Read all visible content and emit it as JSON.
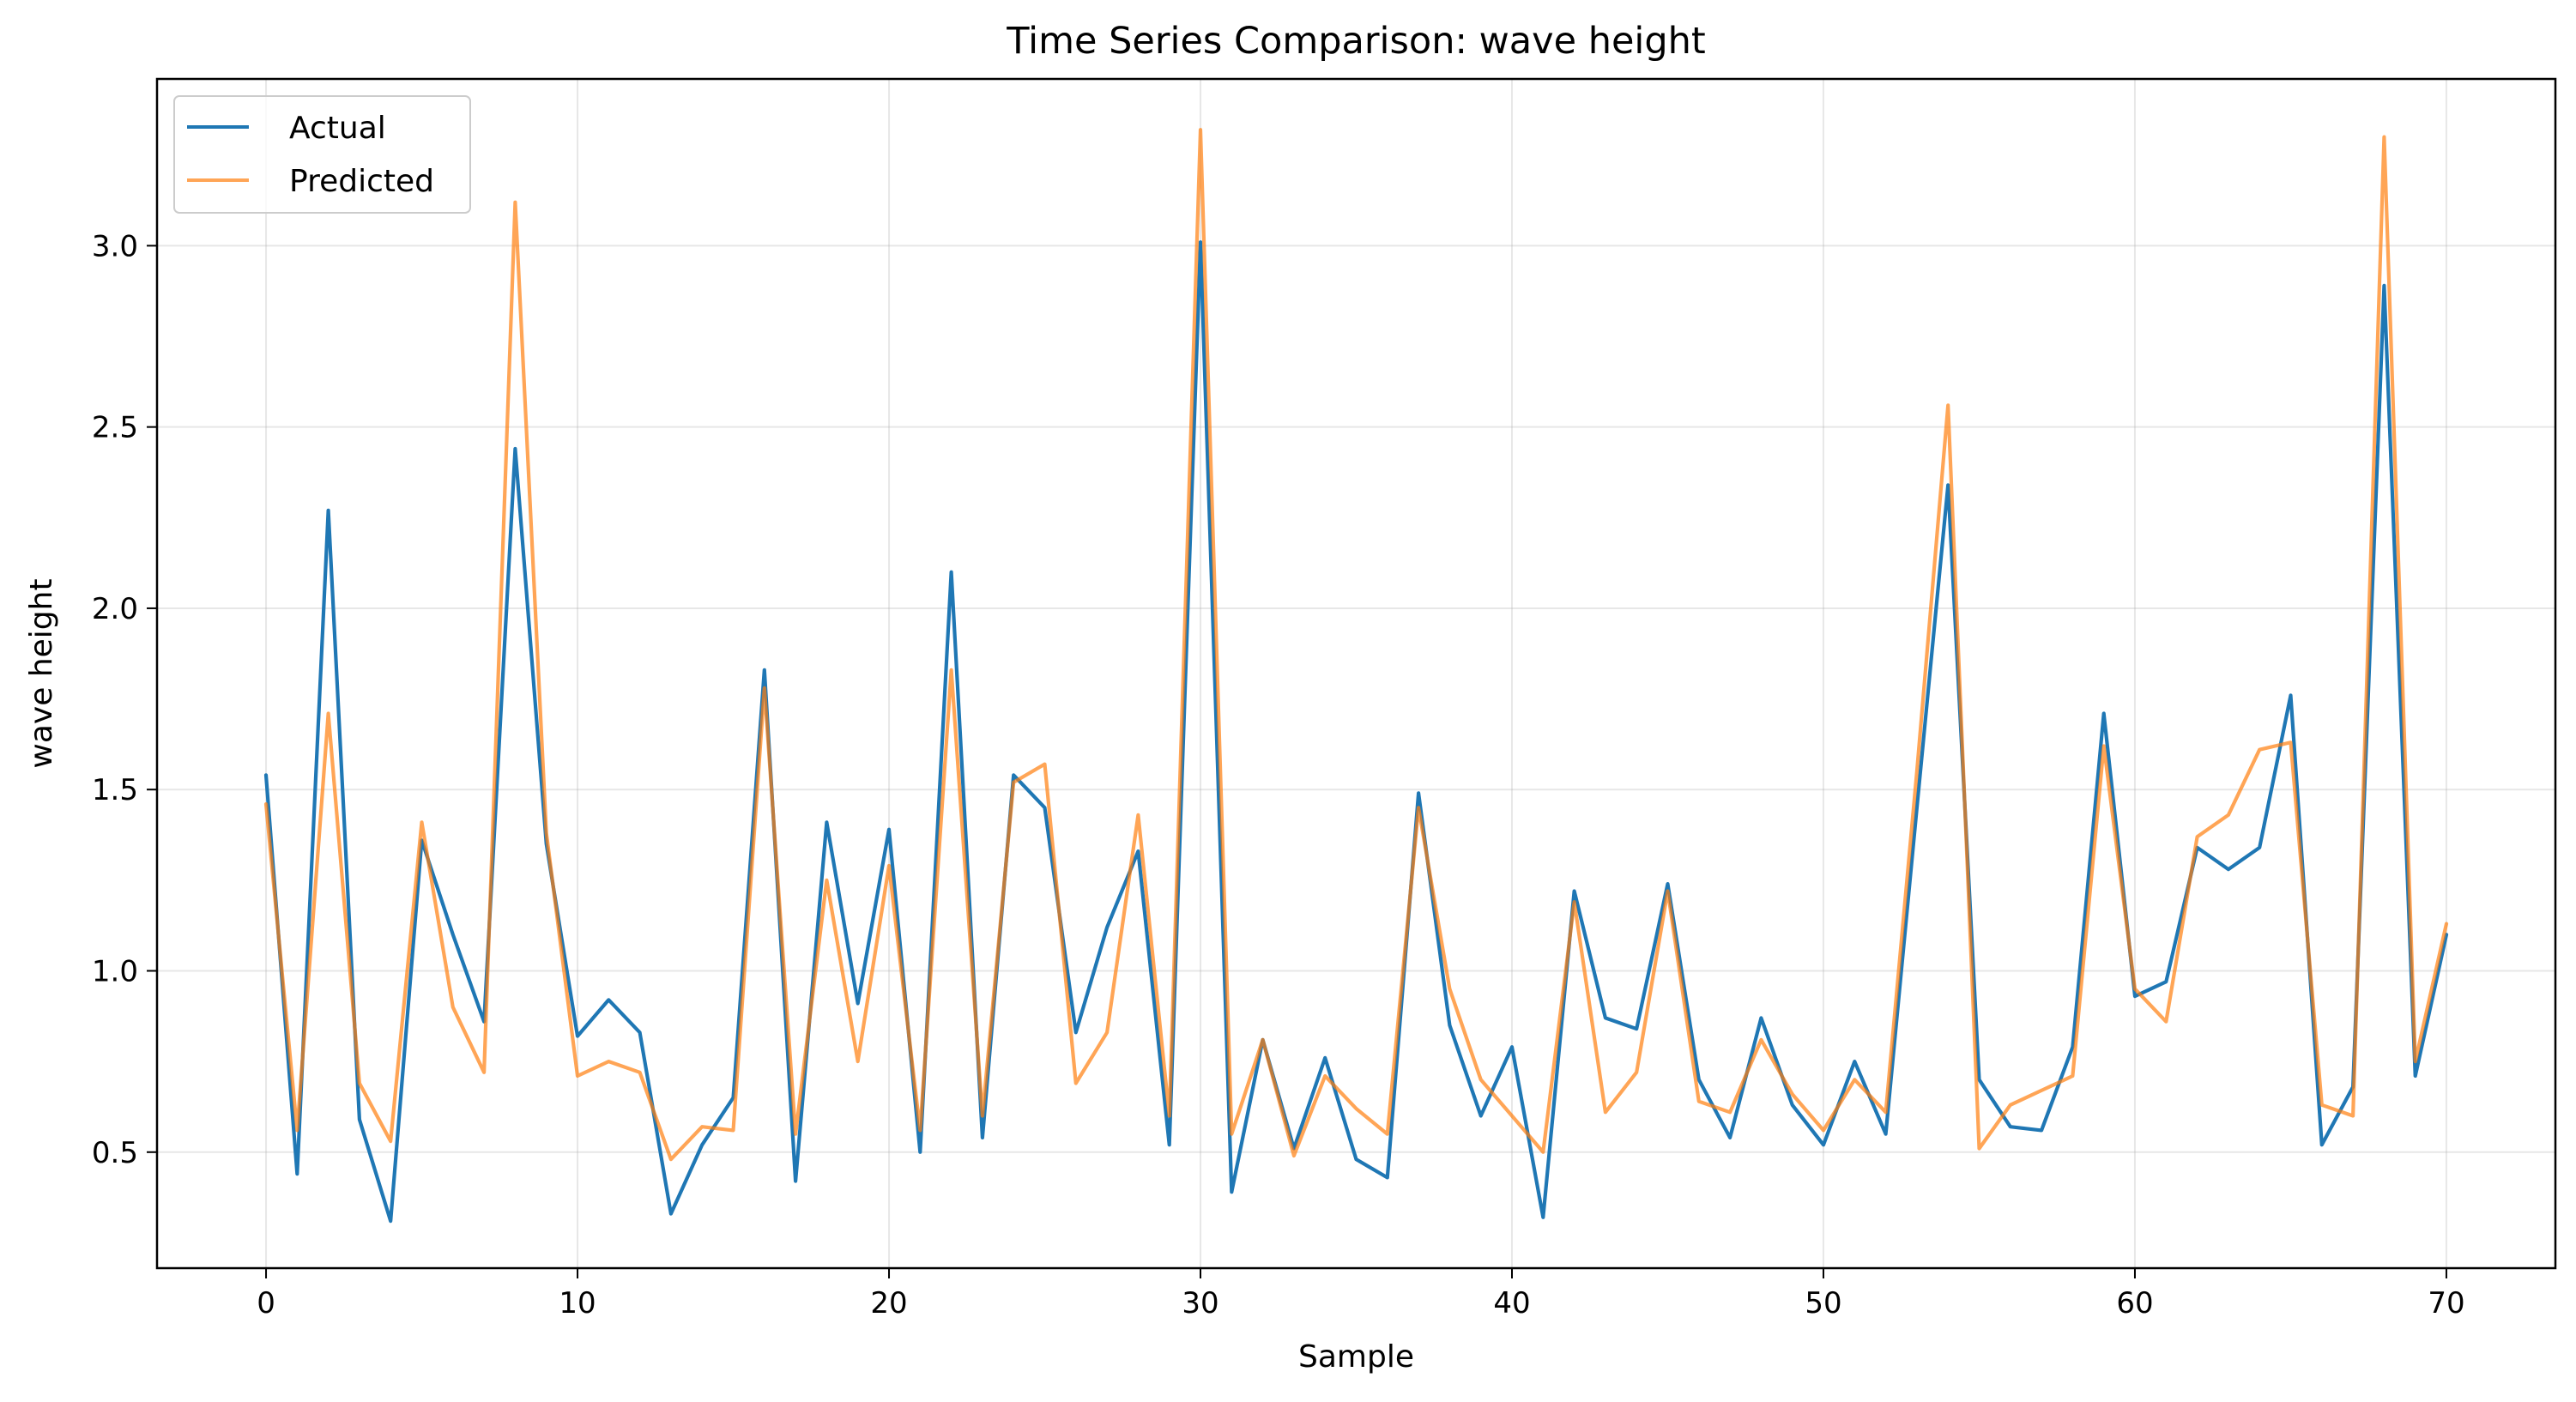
{
  "chart_data": {
    "type": "line",
    "title": "Time Series Comparison: wave height",
    "xlabel": "Sample",
    "ylabel": "wave height",
    "xlim": [
      -3.5,
      73.5
    ],
    "ylim": [
      0.18,
      3.46
    ],
    "xticks": [
      0,
      10,
      20,
      30,
      40,
      50,
      60,
      70
    ],
    "xtick_labels": [
      "0",
      "10",
      "20",
      "30",
      "40",
      "50",
      "60",
      "70"
    ],
    "yticks": [
      0.5,
      1.0,
      1.5,
      2.0,
      2.5,
      3.0
    ],
    "ytick_labels": [
      "0.5",
      "1.0",
      "1.5",
      "2.0",
      "2.5",
      "3.0"
    ],
    "grid": true,
    "legend_position": "upper-left",
    "x": [
      0,
      1,
      2,
      3,
      4,
      5,
      6,
      7,
      8,
      9,
      10,
      11,
      12,
      13,
      14,
      15,
      16,
      17,
      18,
      19,
      20,
      21,
      22,
      23,
      24,
      25,
      26,
      27,
      28,
      29,
      30,
      31,
      32,
      33,
      34,
      35,
      36,
      37,
      38,
      39,
      40,
      41,
      42,
      43,
      44,
      45,
      46,
      47,
      48,
      49,
      50,
      51,
      52,
      53,
      54,
      55,
      56,
      57,
      58,
      59,
      60,
      61,
      62,
      63,
      64,
      65,
      66,
      67,
      68,
      69,
      70
    ],
    "series": [
      {
        "name": "Actual",
        "color": "#1f77b4",
        "values": [
          1.54,
          0.44,
          2.27,
          0.59,
          0.31,
          1.36,
          1.1,
          0.86,
          2.44,
          1.35,
          0.82,
          0.92,
          0.83,
          0.33,
          0.52,
          0.65,
          1.83,
          0.42,
          1.41,
          0.91,
          1.39,
          0.5,
          2.1,
          0.54,
          1.54,
          1.45,
          0.83,
          1.12,
          1.33,
          0.52,
          3.01,
          0.39,
          0.81,
          0.51,
          0.76,
          0.48,
          0.43,
          1.49,
          0.85,
          0.6,
          0.79,
          0.32,
          1.22,
          0.87,
          0.84,
          1.24,
          0.7,
          0.54,
          0.87,
          0.63,
          0.52,
          0.75,
          0.55,
          1.45,
          2.34,
          0.7,
          0.57,
          0.56,
          0.79,
          1.71,
          0.93,
          0.97,
          1.34,
          1.28,
          1.34,
          1.76,
          0.52,
          0.68,
          2.89,
          0.71,
          1.1
        ]
      },
      {
        "name": "Predicted",
        "color": "#ff7f0e",
        "values": [
          1.46,
          0.56,
          1.71,
          0.69,
          0.53,
          1.41,
          0.9,
          0.72,
          3.12,
          1.38,
          0.71,
          0.75,
          0.72,
          0.48,
          0.57,
          0.56,
          1.78,
          0.55,
          1.25,
          0.75,
          1.29,
          0.56,
          1.83,
          0.6,
          1.52,
          1.57,
          0.69,
          0.83,
          1.43,
          0.6,
          3.32,
          0.55,
          0.81,
          0.49,
          0.71,
          0.62,
          0.55,
          1.45,
          0.95,
          0.7,
          0.6,
          0.5,
          1.19,
          0.61,
          0.72,
          1.22,
          0.64,
          0.61,
          0.81,
          0.66,
          0.56,
          0.7,
          0.61,
          1.55,
          2.56,
          0.51,
          0.63,
          0.67,
          0.71,
          1.62,
          0.95,
          0.86,
          1.37,
          1.43,
          1.61,
          1.63,
          0.63,
          0.6,
          3.3,
          0.75,
          1.13
        ]
      }
    ]
  }
}
